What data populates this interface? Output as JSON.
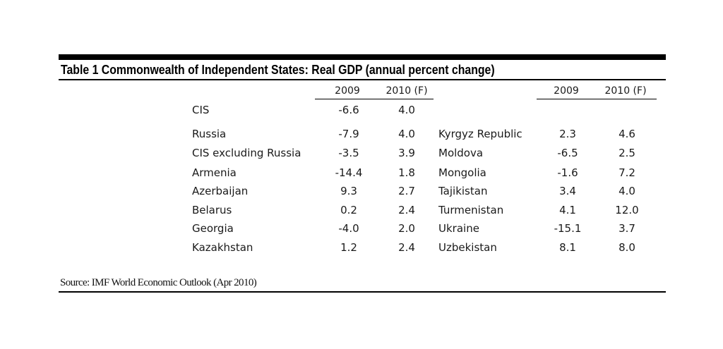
{
  "title": "Table 1 Commonwealth of Independent States: Real GDP (annual percent change)",
  "headers": {
    "left": [
      "2009",
      "2010 (F)"
    ],
    "right": [
      "2009",
      "2010 (F)"
    ]
  },
  "cis_row": {
    "name": "CIS",
    "v2009": "-6.6",
    "v2010": "4.0"
  },
  "left_rows": [
    {
      "name": "Russia",
      "v2009": "-7.9",
      "v2010": "4.0"
    },
    {
      "name": "CIS excluding Russia",
      "v2009": "-3.5",
      "v2010": "3.9"
    },
    {
      "name": "Armenia",
      "v2009": "-14.4",
      "v2010": "1.8"
    },
    {
      "name": "Azerbaijan",
      "v2009": "9.3",
      "v2010": "2.7"
    },
    {
      "name": "Belarus",
      "v2009": "0.2",
      "v2010": "2.4"
    },
    {
      "name": "Georgia",
      "v2009": "-4.0",
      "v2010": "2.0"
    },
    {
      "name": "Kazakhstan",
      "v2009": "1.2",
      "v2010": "2.4"
    }
  ],
  "right_rows": [
    {
      "name": "Kyrgyz Republic",
      "v2009": "2.3",
      "v2010": "4.6"
    },
    {
      "name": "Moldova",
      "v2009": "-6.5",
      "v2010": "2.5"
    },
    {
      "name": "Mongolia",
      "v2009": "-1.6",
      "v2010": "7.2"
    },
    {
      "name": "Tajikistan",
      "v2009": "3.4",
      "v2010": "4.0"
    },
    {
      "name": "Turmenistan",
      "v2009": "4.1",
      "v2010": "12.0"
    },
    {
      "name": "Ukraine",
      "v2009": "-15.1",
      "v2010": "3.7"
    },
    {
      "name": "Uzbekistan",
      "v2009": "8.1",
      "v2010": "8.0"
    }
  ],
  "source": "Source: IMF World Economic Outlook (Apr 2010)"
}
